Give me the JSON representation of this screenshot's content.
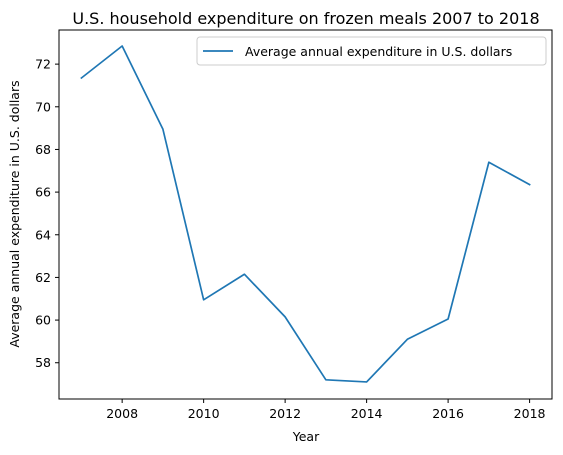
{
  "chart_data": {
    "type": "line",
    "title": "U.S. household expenditure on frozen meals 2007 to 2018",
    "xlabel": "Year",
    "ylabel": "Average annual expenditure in U.S. dollars",
    "x": [
      2007,
      2008,
      2009,
      2010,
      2011,
      2012,
      2013,
      2014,
      2015,
      2016,
      2017,
      2018
    ],
    "series": [
      {
        "name": "Average annual expenditure in U.S. dollars",
        "color": "#1f77b4",
        "values": [
          71.35,
          72.85,
          68.95,
          60.95,
          62.15,
          60.15,
          57.2,
          57.1,
          59.1,
          60.05,
          67.4,
          66.35
        ]
      }
    ],
    "xlim": [
      2006.45,
      2018.55
    ],
    "ylim": [
      56.3,
      73.6
    ],
    "xticks": [
      2008,
      2010,
      2012,
      2014,
      2016,
      2018
    ],
    "yticks": [
      58,
      60,
      62,
      64,
      66,
      68,
      70,
      72
    ],
    "grid": false,
    "legend_position": "top-right"
  }
}
